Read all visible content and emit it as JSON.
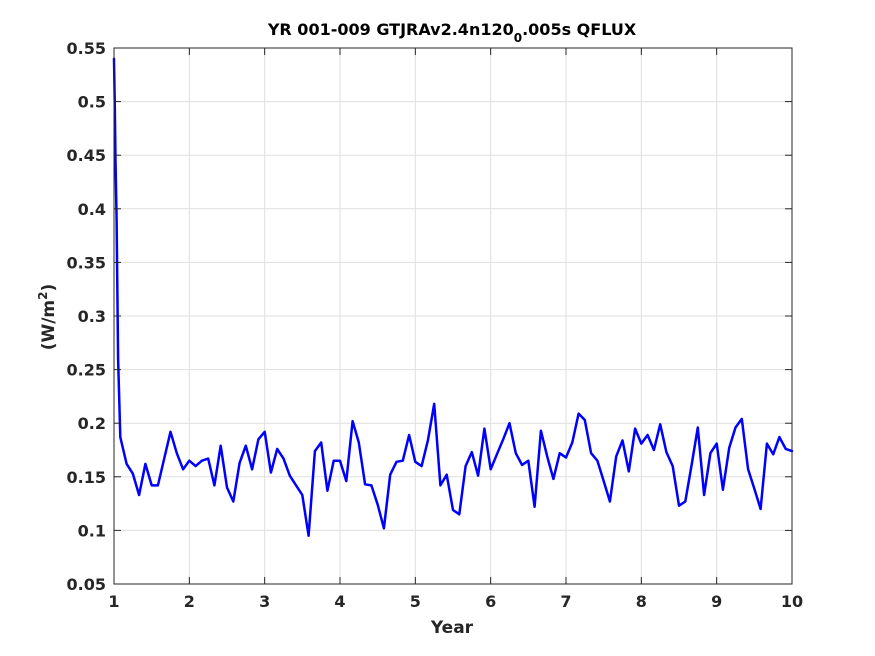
{
  "chart_data": {
    "type": "line",
    "title_main": "YR 001-009 GTJRAv2.4n120",
    "title_sub": "0",
    "title_end": ".005s QFLUX",
    "xlabel": "Year",
    "ylabel_main": "(W/m",
    "ylabel_sup": "2",
    "ylabel_end": ")",
    "xlim": [
      1,
      10
    ],
    "ylim": [
      0.05,
      0.55
    ],
    "xticks": [
      1,
      2,
      3,
      4,
      5,
      6,
      7,
      8,
      9,
      10
    ],
    "yticks": [
      0.05,
      0.1,
      0.15,
      0.2,
      0.25,
      0.3,
      0.35,
      0.4,
      0.45,
      0.5,
      0.55
    ],
    "ytick_labels": [
      "0.05",
      "0.1",
      "0.15",
      "0.2",
      "0.25",
      "0.3",
      "0.35",
      "0.4",
      "0.45",
      "0.5",
      "0.55"
    ],
    "grid": true,
    "series": [
      {
        "color": "#0000ff",
        "x": [
          1.0,
          1.01,
          1.02,
          1.035,
          1.055,
          1.083,
          1.167,
          1.25,
          1.333,
          1.417,
          1.5,
          1.583,
          1.667,
          1.75,
          1.833,
          1.917,
          2.0,
          2.083,
          2.167,
          2.25,
          2.333,
          2.417,
          2.5,
          2.583,
          2.667,
          2.75,
          2.833,
          2.917,
          3.0,
          3.083,
          3.167,
          3.25,
          3.333,
          3.417,
          3.5,
          3.583,
          3.667,
          3.75,
          3.833,
          3.917,
          4.0,
          4.083,
          4.167,
          4.25,
          4.333,
          4.417,
          4.5,
          4.583,
          4.667,
          4.75,
          4.833,
          4.917,
          5.0,
          5.083,
          5.167,
          5.25,
          5.333,
          5.417,
          5.5,
          5.583,
          5.667,
          5.75,
          5.833,
          5.917,
          6.0,
          6.083,
          6.167,
          6.25,
          6.333,
          6.417,
          6.5,
          6.583,
          6.667,
          6.75,
          6.833,
          6.917,
          7.0,
          7.083,
          7.167,
          7.25,
          7.333,
          7.417,
          7.5,
          7.583,
          7.667,
          7.75,
          7.833,
          7.917,
          8.0,
          8.083,
          8.167,
          8.25,
          8.333,
          8.417,
          8.5,
          8.583,
          8.667,
          8.75,
          8.833,
          8.917,
          9.0,
          9.083,
          9.167,
          9.25,
          9.333,
          9.417,
          9.5,
          9.583,
          9.667,
          9.75,
          9.833,
          9.917,
          10.0
        ],
        "y": [
          0.54,
          0.495,
          0.445,
          0.39,
          0.26,
          0.187,
          0.162,
          0.153,
          0.133,
          0.162,
          0.142,
          0.142,
          0.167,
          0.192,
          0.172,
          0.157,
          0.165,
          0.16,
          0.165,
          0.167,
          0.142,
          0.179,
          0.14,
          0.127,
          0.163,
          0.179,
          0.157,
          0.185,
          0.192,
          0.154,
          0.176,
          0.167,
          0.151,
          0.142,
          0.133,
          0.095,
          0.174,
          0.182,
          0.137,
          0.165,
          0.165,
          0.146,
          0.202,
          0.182,
          0.143,
          0.142,
          0.124,
          0.102,
          0.152,
          0.164,
          0.165,
          0.189,
          0.164,
          0.16,
          0.184,
          0.218,
          0.142,
          0.152,
          0.119,
          0.115,
          0.16,
          0.173,
          0.151,
          0.195,
          0.157,
          0.171,
          0.185,
          0.2,
          0.172,
          0.161,
          0.165,
          0.122,
          0.193,
          0.169,
          0.148,
          0.172,
          0.168,
          0.182,
          0.209,
          0.203,
          0.172,
          0.165,
          0.146,
          0.127,
          0.169,
          0.184,
          0.155,
          0.195,
          0.181,
          0.189,
          0.175,
          0.199,
          0.173,
          0.16,
          0.123,
          0.127,
          0.161,
          0.196,
          0.133,
          0.172,
          0.181,
          0.138,
          0.177,
          0.196,
          0.204,
          0.157,
          0.139,
          0.12,
          0.181,
          0.171,
          0.187,
          0.176,
          0.174
        ]
      }
    ]
  }
}
